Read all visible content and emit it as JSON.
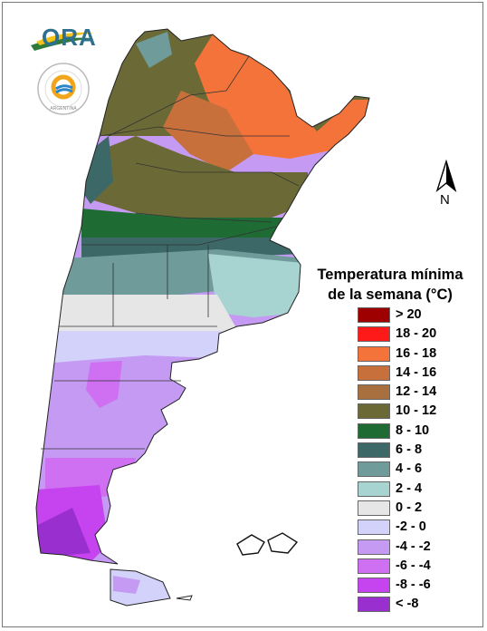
{
  "logo": {
    "text": "ORA"
  },
  "agency_logo": {
    "text": "ARGENTINA"
  },
  "north_arrow": {
    "label": "N"
  },
  "legend": {
    "title_line1": "Temperatura mínima",
    "title_line2": "de la semana (°C)",
    "items": [
      {
        "label": "> 20",
        "color": "#9e0000"
      },
      {
        "label": "18 - 20",
        "color": "#ff1a1a"
      },
      {
        "label": "16 - 18",
        "color": "#f4733a"
      },
      {
        "label": "14 - 16",
        "color": "#c8703c"
      },
      {
        "label": "12 - 14",
        "color": "#a8703f"
      },
      {
        "label": "10 - 12",
        "color": "#6b6a36"
      },
      {
        "label": "8 - 10",
        "color": "#1f6b34"
      },
      {
        "label": "6 - 8",
        "color": "#3d6868"
      },
      {
        "label": "4 - 6",
        "color": "#6f9c9a"
      },
      {
        "label": "2 - 4",
        "color": "#a7d4d0"
      },
      {
        "label": "0 - 2",
        "color": "#e6e6e6"
      },
      {
        "label": "-2 - 0",
        "color": "#d2d2fa"
      },
      {
        "label": "-4 - -2",
        "color": "#c59af2"
      },
      {
        "label": "-6 - -4",
        "color": "#cf6ff2"
      },
      {
        "label": "-8 - -6",
        "color": "#c644f0"
      },
      {
        "label": "< -8",
        "color": "#9a2fcf"
      }
    ]
  }
}
